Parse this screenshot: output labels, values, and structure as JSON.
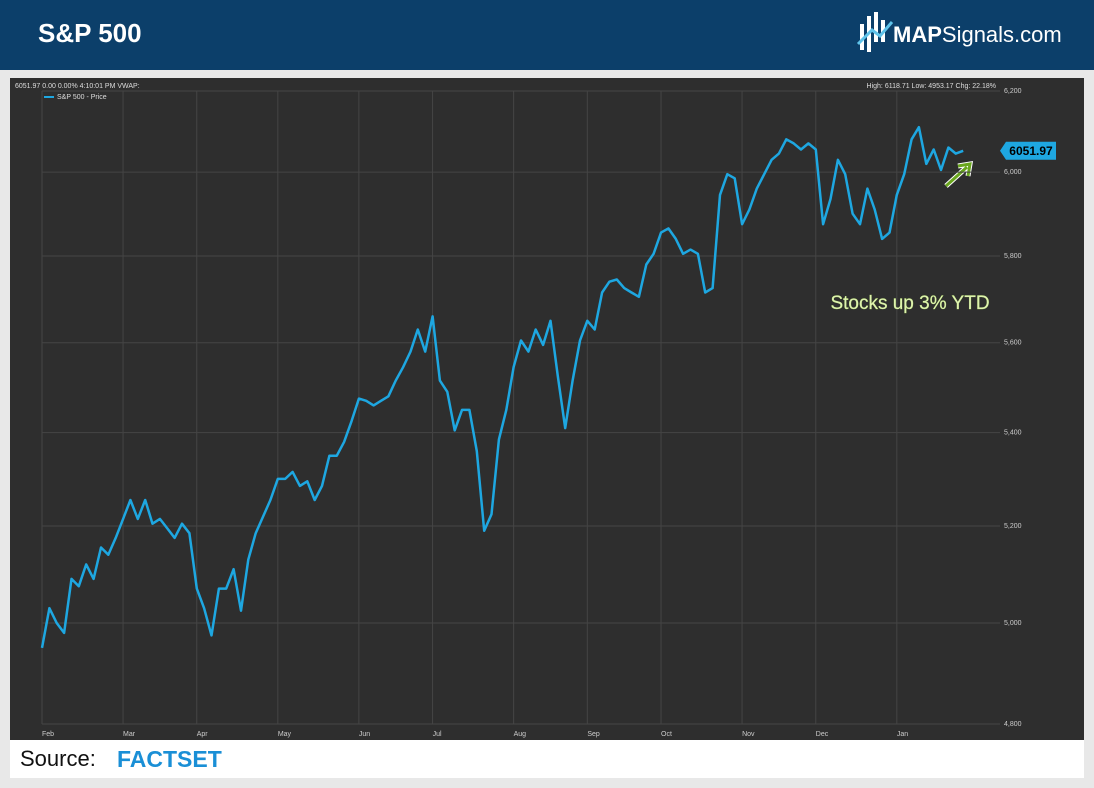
{
  "header": {
    "title": "S&P 500",
    "logo_bold": "MAP",
    "logo_rest": "Signals.com"
  },
  "chart_data": {
    "type": "line",
    "info_left": "6051.97 0.00 0.00% 4:10:01 PM VWAP:",
    "info_right": "High: 6118.71 Low: 4953.17 Chg: 22.18%",
    "annotation": "Stocks up 3% YTD",
    "log_scale": true,
    "grid": true,
    "xlim": [
      0,
      130
    ],
    "xticks": [
      {
        "value": 0,
        "label": "Feb"
      },
      {
        "value": 11,
        "label": "Mar"
      },
      {
        "value": 21,
        "label": "Apr"
      },
      {
        "value": 32,
        "label": "May"
      },
      {
        "value": 43,
        "label": "Jun"
      },
      {
        "value": 53,
        "label": "Jul"
      },
      {
        "value": 64,
        "label": "Aug"
      },
      {
        "value": 74,
        "label": "Sep"
      },
      {
        "value": 84,
        "label": "Oct"
      },
      {
        "value": 95,
        "label": "Nov"
      },
      {
        "value": 105,
        "label": "Dec"
      },
      {
        "value": 116,
        "label": "Jan"
      }
    ],
    "ylim": [
      4800,
      6200
    ],
    "yticks": [
      {
        "value": 4800,
        "label": "4,800"
      },
      {
        "value": 5000,
        "label": "5,000"
      },
      {
        "value": 5200,
        "label": "5,200"
      },
      {
        "value": 5400,
        "label": "5,400"
      },
      {
        "value": 5600,
        "label": "5,600"
      },
      {
        "value": 5800,
        "label": "5,800"
      },
      {
        "value": 6000,
        "label": "6,000"
      },
      {
        "value": 6200,
        "label": "6,200"
      }
    ],
    "series": [
      {
        "name": "S&P 500 - Price",
        "color": "#1ea7e1",
        "values": [
          4950,
          5030,
          5000,
          4980,
          5090,
          5075,
          5120,
          5090,
          5155,
          5140,
          5175,
          5215,
          5255,
          5215,
          5255,
          5205,
          5215,
          5195,
          5175,
          5205,
          5185,
          5070,
          5030,
          4975,
          5070,
          5070,
          5110,
          5025,
          5130,
          5185,
          5220,
          5255,
          5300,
          5300,
          5315,
          5285,
          5295,
          5255,
          5285,
          5350,
          5350,
          5380,
          5425,
          5475,
          5470,
          5460,
          5470,
          5480,
          5515,
          5545,
          5580,
          5630,
          5580,
          5660,
          5515,
          5490,
          5405,
          5450,
          5450,
          5360,
          5190,
          5225,
          5385,
          5450,
          5545,
          5605,
          5580,
          5630,
          5595,
          5650,
          5525,
          5410,
          5515,
          5605,
          5650,
          5630,
          5715,
          5740,
          5745,
          5725,
          5715,
          5705,
          5780,
          5805,
          5855,
          5865,
          5840,
          5805,
          5815,
          5805,
          5715,
          5725,
          5945,
          5995,
          5985,
          5875,
          5910,
          5960,
          5995,
          6030,
          6045,
          6080,
          6070,
          6055,
          6070,
          6055,
          5875,
          5935,
          6030,
          5995,
          5900,
          5875,
          5960,
          5910,
          5840,
          5855,
          5945,
          5995,
          6080,
          6110,
          6020,
          6055,
          6005,
          6060,
          6045,
          6051.97
        ]
      }
    ]
  },
  "footer": {
    "source_label": "Source:",
    "source": "FACTSET"
  }
}
